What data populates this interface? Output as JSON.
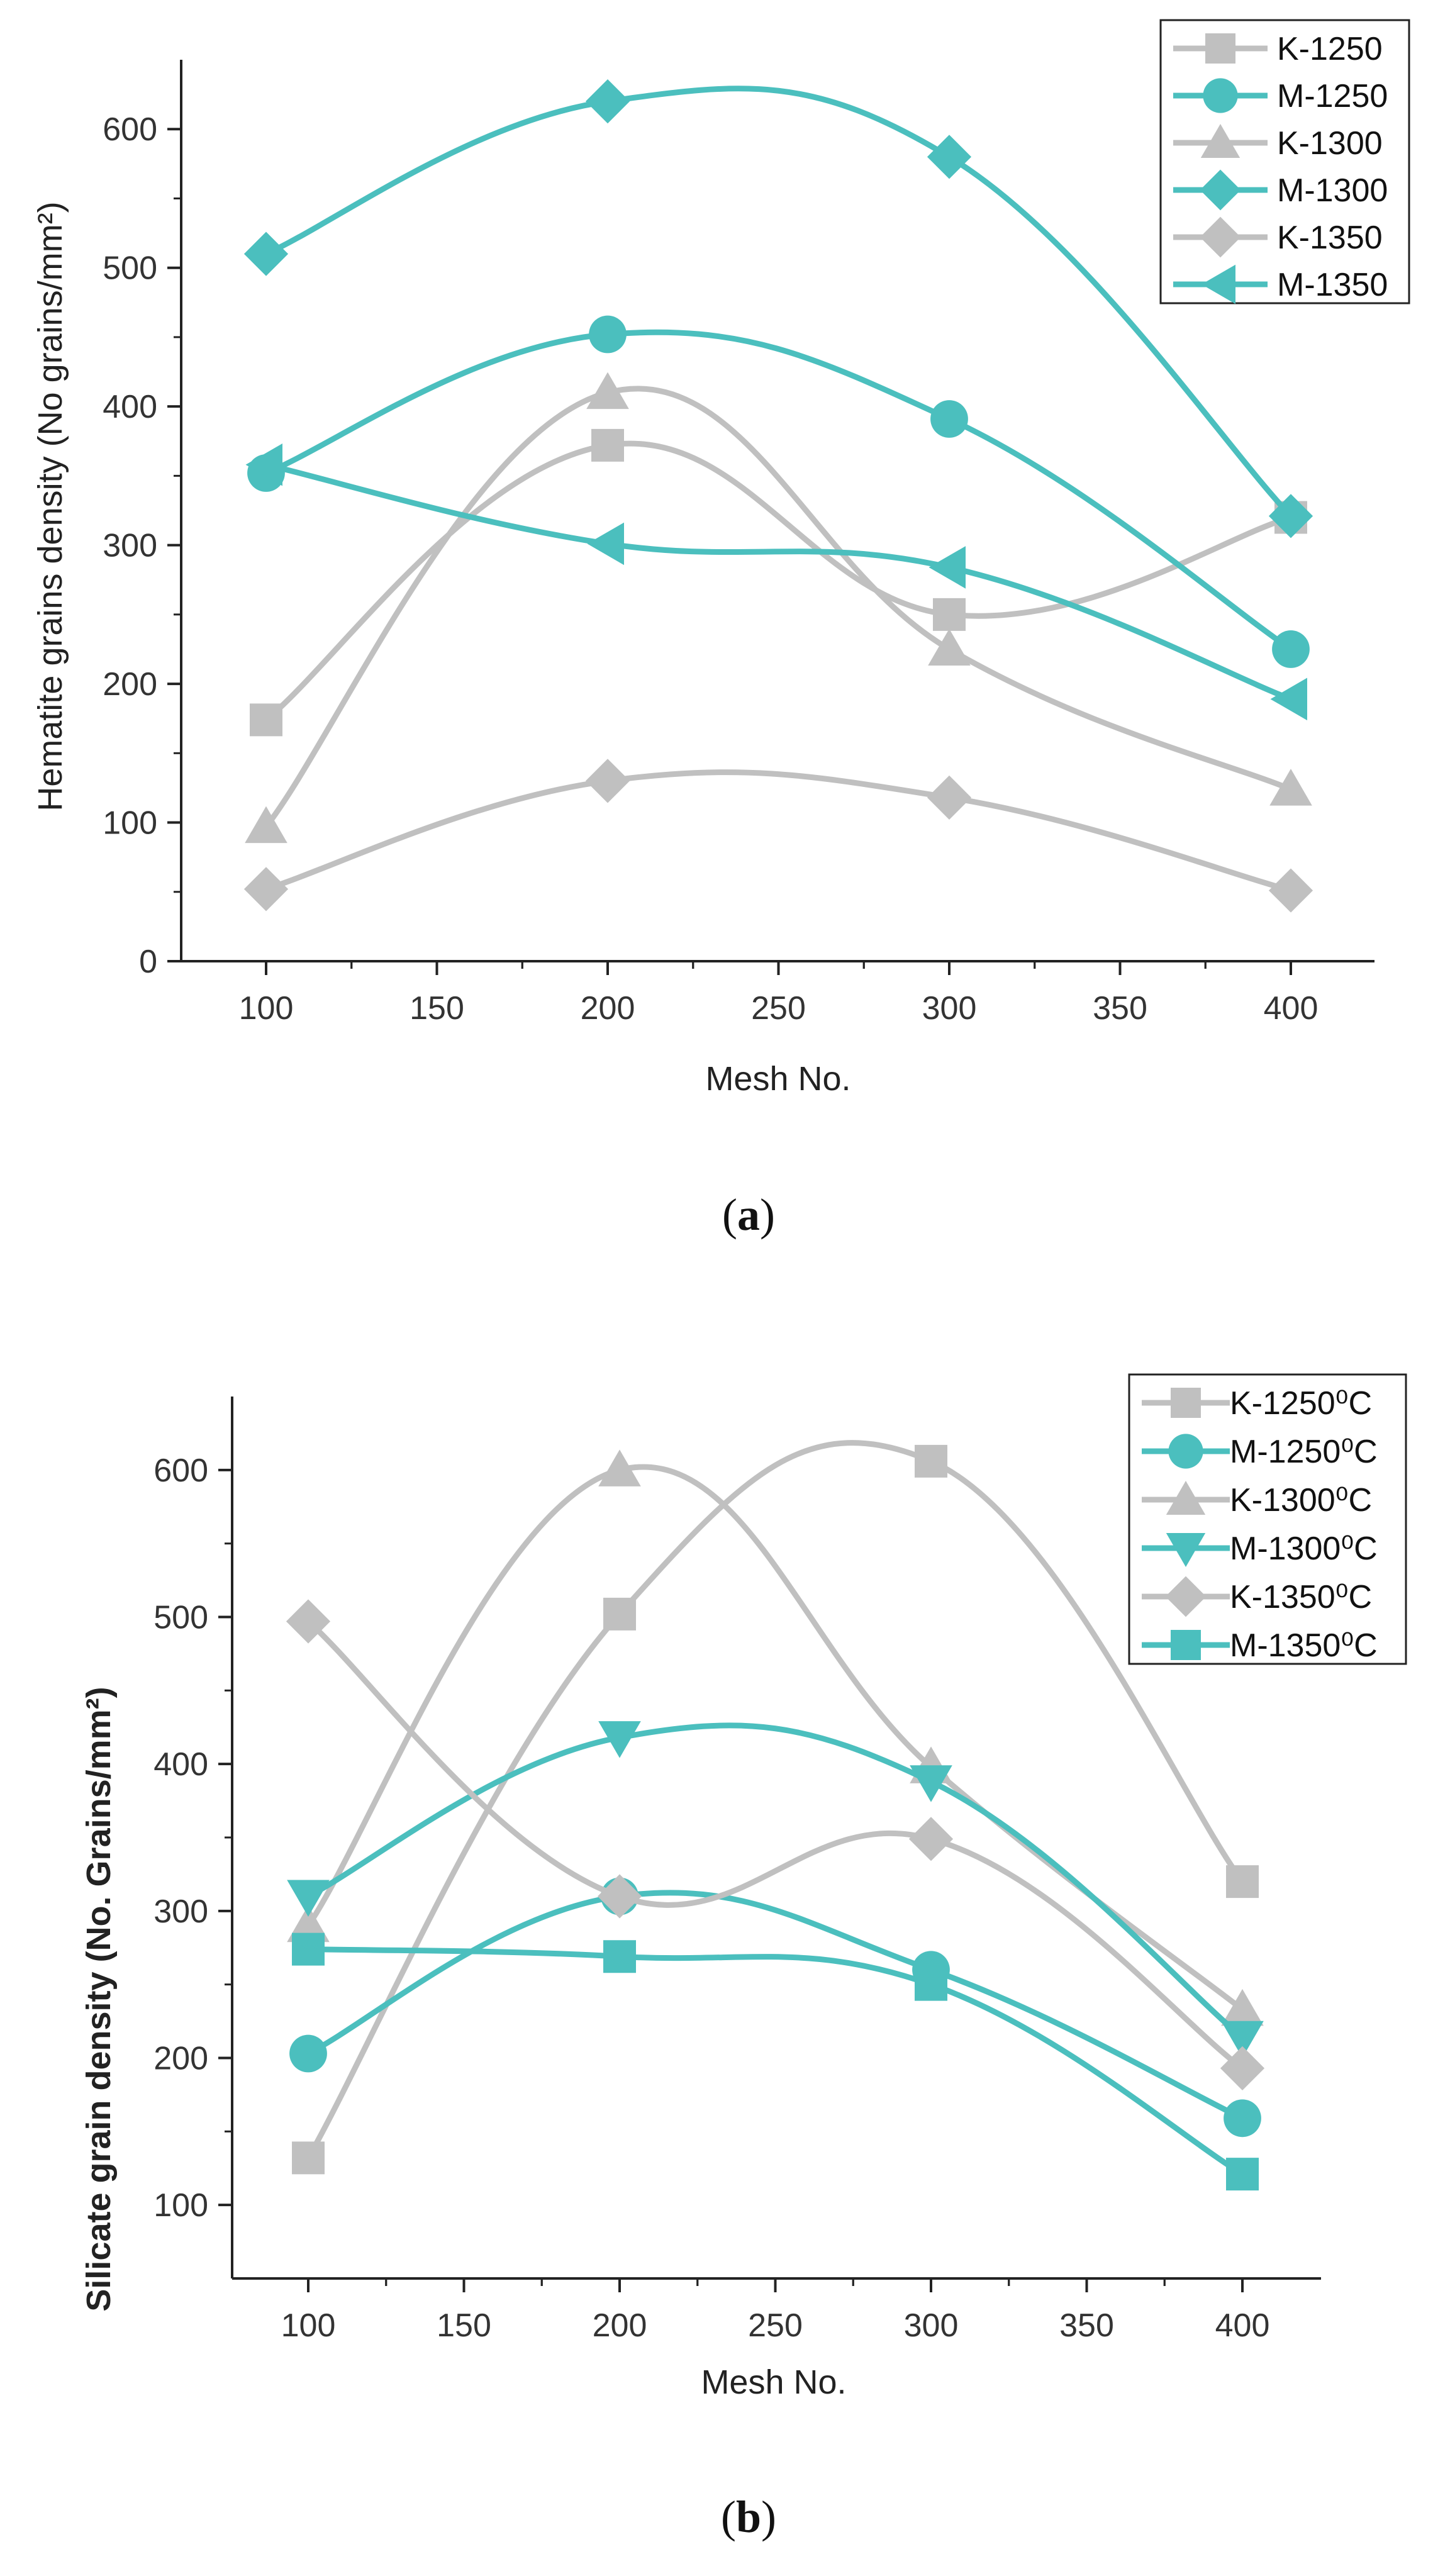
{
  "chart_data": [
    {
      "type": "line",
      "caption": "a",
      "xlabel": "Mesh No.",
      "ylabel": "Hematite grains density (No grains/mm²)",
      "xlim": [
        75,
        420
      ],
      "ylim": [
        0,
        650
      ],
      "xticks": [
        100,
        150,
        200,
        250,
        300,
        350,
        400
      ],
      "yticks": [
        0,
        100,
        200,
        300,
        400,
        500,
        600
      ],
      "x": [
        100,
        200,
        300,
        400
      ],
      "legend_position": "top-right",
      "series": [
        {
          "name": "K-1250",
          "values": [
            174,
            372,
            250,
            320
          ],
          "color": "#c0c0c0",
          "marker": "square"
        },
        {
          "name": "M-1250",
          "values": [
            352,
            452,
            391,
            225
          ],
          "color": "#4bbfbe",
          "marker": "circle"
        },
        {
          "name": "K-1300",
          "values": [
            97,
            410,
            225,
            124
          ],
          "color": "#c0c0c0",
          "marker": "triangle-up"
        },
        {
          "name": "M-1300",
          "values": [
            510,
            620,
            580,
            321
          ],
          "color": "#4bbfbe",
          "marker": "diamond"
        },
        {
          "name": "K-1350",
          "values": [
            52,
            130,
            118,
            51
          ],
          "color": "#c0c0c0",
          "marker": "diamond"
        },
        {
          "name": "M-1350",
          "values": [
            358,
            301,
            284,
            189
          ],
          "color": "#4bbfbe",
          "marker": "triangle-left"
        }
      ]
    },
    {
      "type": "line",
      "caption": "b",
      "xlabel": "Mesh No.",
      "ylabel": "Silicate grain density (No. Grains/mm²)",
      "xlim": [
        75,
        425
      ],
      "ylim": [
        50,
        650
      ],
      "xticks": [
        100,
        150,
        200,
        250,
        300,
        350,
        400
      ],
      "yticks": [
        100,
        200,
        300,
        400,
        500,
        600
      ],
      "x": [
        100,
        200,
        300,
        400
      ],
      "legend_position": "top-right",
      "series": [
        {
          "name": "K-1250⁰C",
          "values": [
            132,
            502,
            606,
            320
          ],
          "color": "#c0c0c0",
          "marker": "square"
        },
        {
          "name": "M-1250⁰C",
          "values": [
            203,
            310,
            260,
            159
          ],
          "color": "#4bbfbe",
          "marker": "circle"
        },
        {
          "name": "K-1300⁰C",
          "values": [
            290,
            600,
            398,
            233
          ],
          "color": "#c0c0c0",
          "marker": "triangle-up"
        },
        {
          "name": "M-1300⁰C",
          "values": [
            310,
            418,
            388,
            214
          ],
          "color": "#4bbfbe",
          "marker": "triangle-down"
        },
        {
          "name": "K-1350⁰C",
          "values": [
            497,
            310,
            349,
            193
          ],
          "color": "#c0c0c0",
          "marker": "diamond"
        },
        {
          "name": "M-1350⁰C",
          "values": [
            274,
            269,
            250,
            121
          ],
          "color": "#4bbfbe",
          "marker": "square"
        }
      ]
    }
  ]
}
